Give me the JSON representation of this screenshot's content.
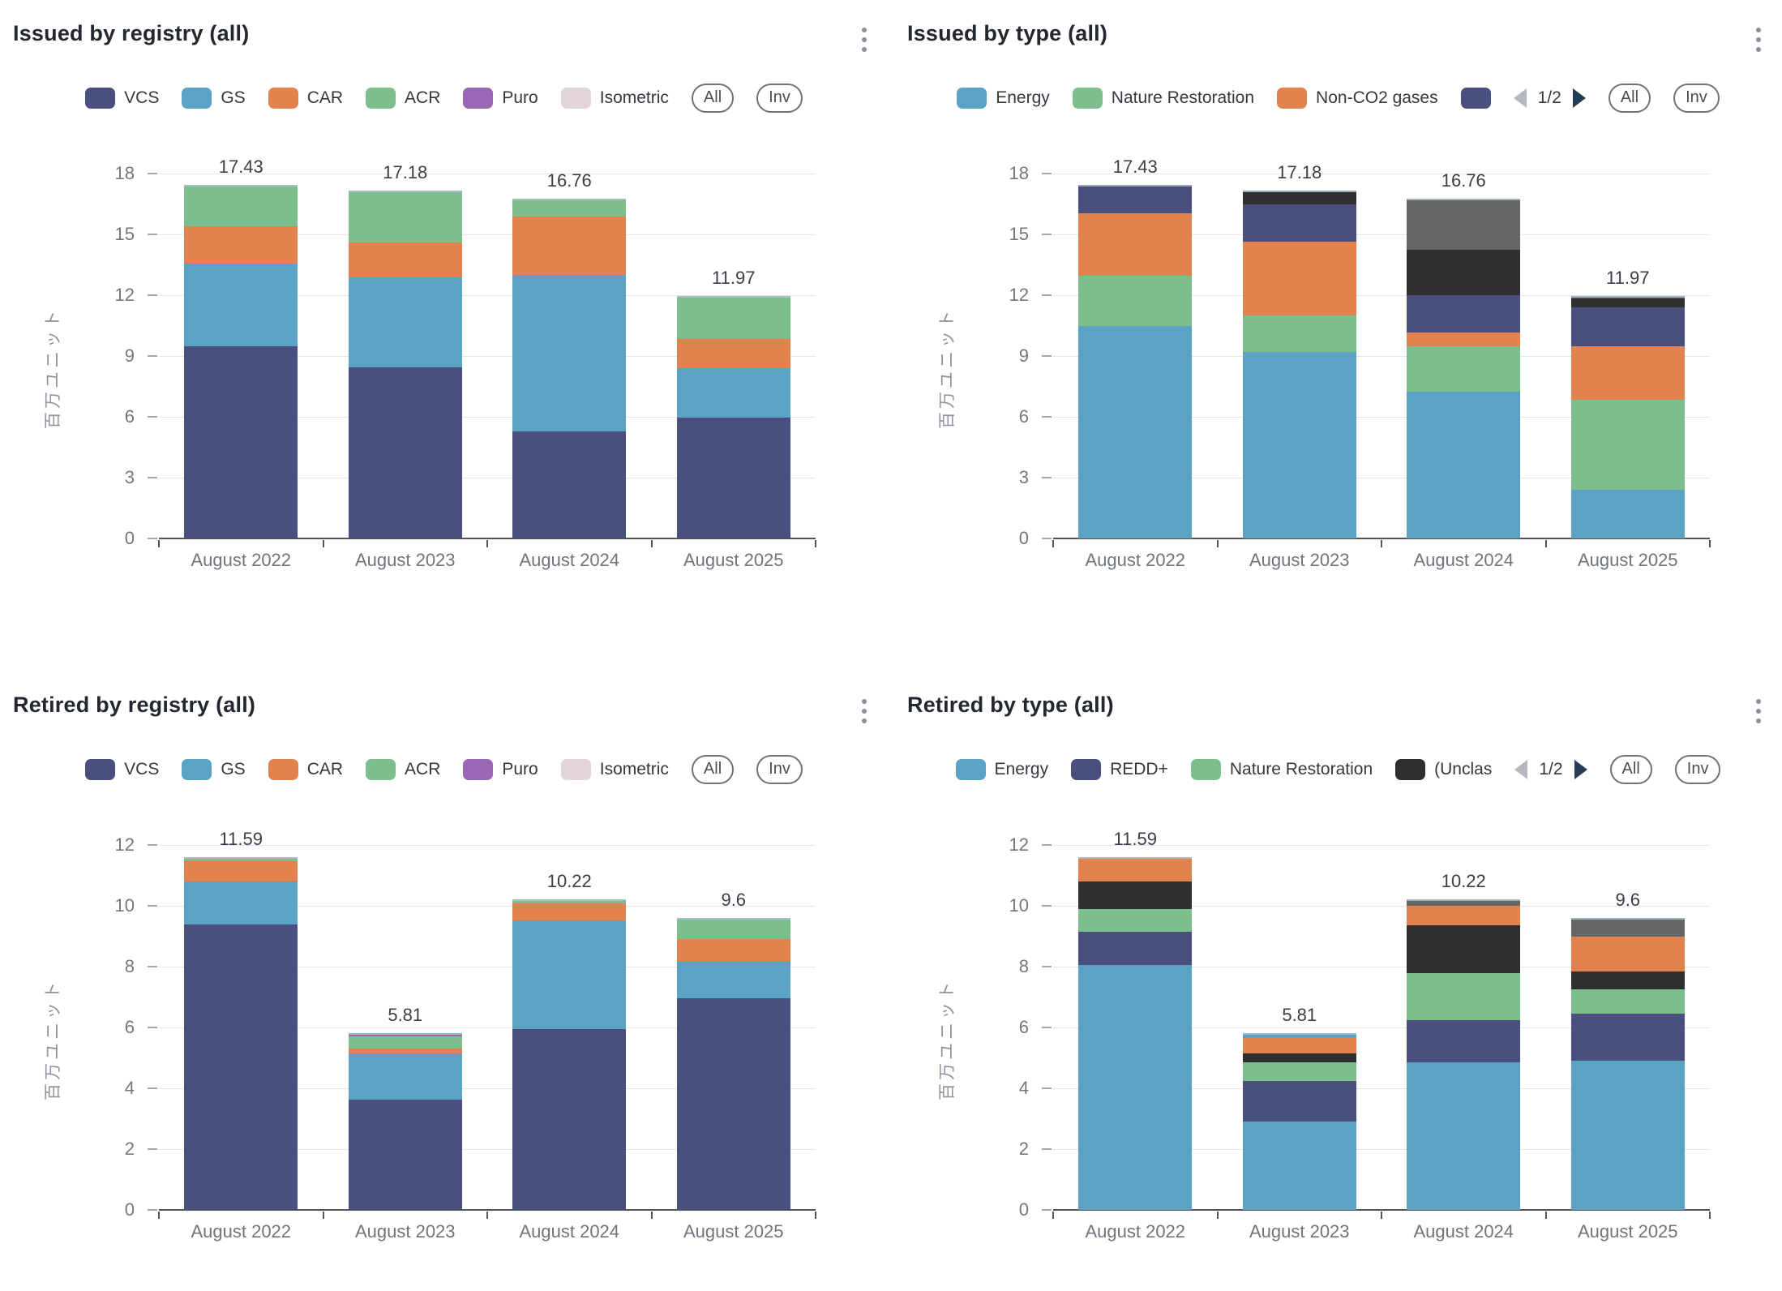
{
  "controls": {
    "all_label": "All",
    "inv_label": "Inv",
    "pagination_label": "1/2"
  },
  "chart_data": [
    {
      "id": "issued-by-registry",
      "title": "Issued by registry (all)",
      "type": "bar",
      "stacked": true,
      "categories": [
        "August 2022",
        "August 2023",
        "August 2024",
        "August 2025"
      ],
      "ylabel": "百万ユニット",
      "ylim": [
        0,
        18
      ],
      "yticks": [
        0,
        3,
        6,
        9,
        12,
        15,
        18
      ],
      "grid": true,
      "legend_position": "top-center",
      "has_pagination": false,
      "totals": [
        "17.43",
        "17.18",
        "16.76",
        "11.97"
      ],
      "legend": [
        {
          "label": "VCS",
          "color": "#49507D"
        },
        {
          "label": "GS",
          "color": "#5BA3C4"
        },
        {
          "label": "CAR",
          "color": "#E2834F"
        },
        {
          "label": "ACR",
          "color": "#7CBE8C"
        },
        {
          "label": "Puro",
          "color": "#9A67B5"
        },
        {
          "label": "Isometric",
          "color": "#E3D4D9"
        }
      ],
      "series": [
        {
          "name": "VCS",
          "color": "#49507D",
          "values": [
            9.5,
            8.45,
            5.3,
            5.95
          ]
        },
        {
          "name": "GS",
          "color": "#5BA3C4",
          "values": [
            4.05,
            4.45,
            7.7,
            2.45
          ]
        },
        {
          "name": "CAR",
          "color": "#E2834F",
          "values": [
            1.85,
            1.7,
            2.9,
            1.45
          ]
        },
        {
          "name": "ACR",
          "color": "#7CBE8C",
          "values": [
            2.03,
            2.58,
            0.86,
            2.12
          ]
        },
        {
          "name": "Puro",
          "color": "#9A67B5",
          "values": [
            0,
            0,
            0,
            0
          ]
        },
        {
          "name": "Isometric",
          "color": "#E3D4D9",
          "values": [
            0,
            0,
            0,
            0
          ]
        }
      ]
    },
    {
      "id": "issued-by-type",
      "title": "Issued by type (all)",
      "type": "bar",
      "stacked": true,
      "categories": [
        "August 2022",
        "August 2023",
        "August 2024",
        "August 2025"
      ],
      "ylabel": "百万ユニット",
      "ylim": [
        0,
        18
      ],
      "yticks": [
        0,
        3,
        6,
        9,
        12,
        15,
        18
      ],
      "grid": true,
      "legend_position": "top-center",
      "has_pagination": true,
      "totals": [
        "17.43",
        "17.18",
        "16.76",
        "11.97"
      ],
      "legend": [
        {
          "label": "Energy",
          "color": "#5BA3C4"
        },
        {
          "label": "Nature Restoration",
          "color": "#7CBE8C"
        },
        {
          "label": "Non-CO2 gases",
          "color": "#E2834F"
        },
        {
          "label": "",
          "color": "#49507D"
        }
      ],
      "series": [
        {
          "name": "Energy",
          "color": "#5BA3C4",
          "values": [
            10.5,
            9.2,
            7.25,
            2.4
          ]
        },
        {
          "name": "Nature Restoration",
          "color": "#7CBE8C",
          "values": [
            2.45,
            1.8,
            2.25,
            4.45
          ]
        },
        {
          "name": "Non-CO2 gases",
          "color": "#E2834F",
          "values": [
            3.1,
            3.65,
            0.65,
            2.65
          ]
        },
        {
          "name": "",
          "color": "#49507D",
          "values": [
            1.3,
            1.85,
            1.85,
            1.9
          ]
        },
        {
          "name": "",
          "color": "#2F2F2F",
          "values": [
            0.08,
            0.68,
            2.26,
            0.45
          ]
        },
        {
          "name": "",
          "color": "#666666",
          "values": [
            0,
            0,
            2.5,
            0.12
          ]
        }
      ]
    },
    {
      "id": "retired-by-registry",
      "title": "Retired by registry (all)",
      "type": "bar",
      "stacked": true,
      "categories": [
        "August 2022",
        "August 2023",
        "August 2024",
        "August 2025"
      ],
      "ylabel": "百万ユニット",
      "ylim": [
        0,
        12
      ],
      "yticks": [
        0,
        2,
        4,
        6,
        8,
        10,
        12
      ],
      "grid": true,
      "legend_position": "top-center",
      "has_pagination": false,
      "totals": [
        "11.59",
        "5.81",
        "10.22",
        "9.6"
      ],
      "legend": [
        {
          "label": "VCS",
          "color": "#49507D"
        },
        {
          "label": "GS",
          "color": "#5BA3C4"
        },
        {
          "label": "CAR",
          "color": "#E2834F"
        },
        {
          "label": "ACR",
          "color": "#7CBE8C"
        },
        {
          "label": "Puro",
          "color": "#9A67B5"
        },
        {
          "label": "Isometric",
          "color": "#E3D4D9"
        }
      ],
      "series": [
        {
          "name": "VCS",
          "color": "#49507D",
          "values": [
            9.4,
            3.62,
            5.95,
            6.95
          ]
        },
        {
          "name": "GS",
          "color": "#5BA3C4",
          "values": [
            1.4,
            1.53,
            3.57,
            1.2
          ]
        },
        {
          "name": "CAR",
          "color": "#E2834F",
          "values": [
            0.67,
            0.15,
            0.55,
            0.75
          ]
        },
        {
          "name": "ACR",
          "color": "#7CBE8C",
          "values": [
            0.12,
            0.4,
            0.15,
            0.7
          ]
        },
        {
          "name": "Puro",
          "color": "#9A67B5",
          "values": [
            0,
            0.11,
            0,
            0
          ]
        },
        {
          "name": "Isometric",
          "color": "#E3D4D9",
          "values": [
            0,
            0,
            0,
            0
          ]
        }
      ]
    },
    {
      "id": "retired-by-type",
      "title": "Retired by type (all)",
      "type": "bar",
      "stacked": true,
      "categories": [
        "August 2022",
        "August 2023",
        "August 2024",
        "August 2025"
      ],
      "ylabel": "百万ユニット",
      "ylim": [
        0,
        12
      ],
      "yticks": [
        0,
        2,
        4,
        6,
        8,
        10,
        12
      ],
      "grid": true,
      "legend_position": "top-center",
      "has_pagination": true,
      "totals": [
        "11.59",
        "5.81",
        "10.22",
        "9.6"
      ],
      "legend": [
        {
          "label": "Energy",
          "color": "#5BA3C4"
        },
        {
          "label": "REDD+",
          "color": "#49507D"
        },
        {
          "label": "Nature Restoration",
          "color": "#7CBE8C"
        },
        {
          "label": "(Unclas",
          "color": "#2F2F2F"
        }
      ],
      "series": [
        {
          "name": "Energy",
          "color": "#5BA3C4",
          "values": [
            8.05,
            2.9,
            4.85,
            4.9
          ]
        },
        {
          "name": "REDD+",
          "color": "#49507D",
          "values": [
            1.1,
            1.35,
            1.4,
            1.55
          ]
        },
        {
          "name": "Nature Restoration",
          "color": "#7CBE8C",
          "values": [
            0.75,
            0.6,
            1.55,
            0.8
          ]
        },
        {
          "name": "(Unclas",
          "color": "#2F2F2F",
          "values": [
            0.9,
            0.3,
            1.55,
            0.6
          ]
        },
        {
          "name": "",
          "color": "#E2834F",
          "values": [
            0.79,
            0.5,
            0.65,
            1.15
          ]
        },
        {
          "name": "",
          "color": "#666666",
          "values": [
            0,
            0,
            0.22,
            0.6
          ]
        },
        {
          "name": "",
          "color": "#5BA3C4",
          "values": [
            0,
            0.16,
            0,
            0
          ]
        }
      ]
    }
  ]
}
